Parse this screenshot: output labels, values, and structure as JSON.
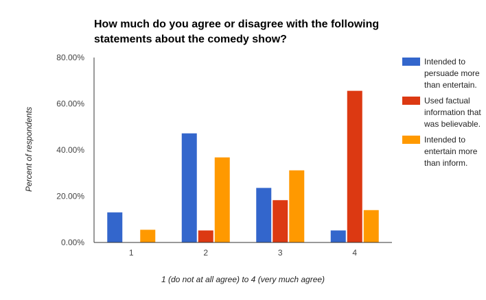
{
  "chart_data": {
    "type": "bar",
    "title": "How much do you agree or disagree with the following statements about the comedy show?",
    "xlabel": "1 (do not at all agree) to 4 (very much agree)",
    "ylabel": "Percent of respondents",
    "categories": [
      "1",
      "2",
      "3",
      "4"
    ],
    "yticks": [
      "0.00%",
      "20.00%",
      "40.00%",
      "60.00%",
      "80.00%"
    ],
    "ylim": [
      0,
      80
    ],
    "grid": false,
    "legend_position": "right",
    "series": [
      {
        "name": "Intended to persuade more than entertain.",
        "color": "#3366cc",
        "values": [
          13.0,
          47.2,
          23.6,
          5.2
        ]
      },
      {
        "name": "Used factual information that was believable.",
        "color": "#dc3912",
        "values": [
          0.0,
          5.2,
          18.3,
          65.6
        ]
      },
      {
        "name": "Intended to entertain more than inform.",
        "color": "#ff9900",
        "values": [
          5.5,
          36.8,
          31.2,
          14.0
        ]
      }
    ]
  }
}
